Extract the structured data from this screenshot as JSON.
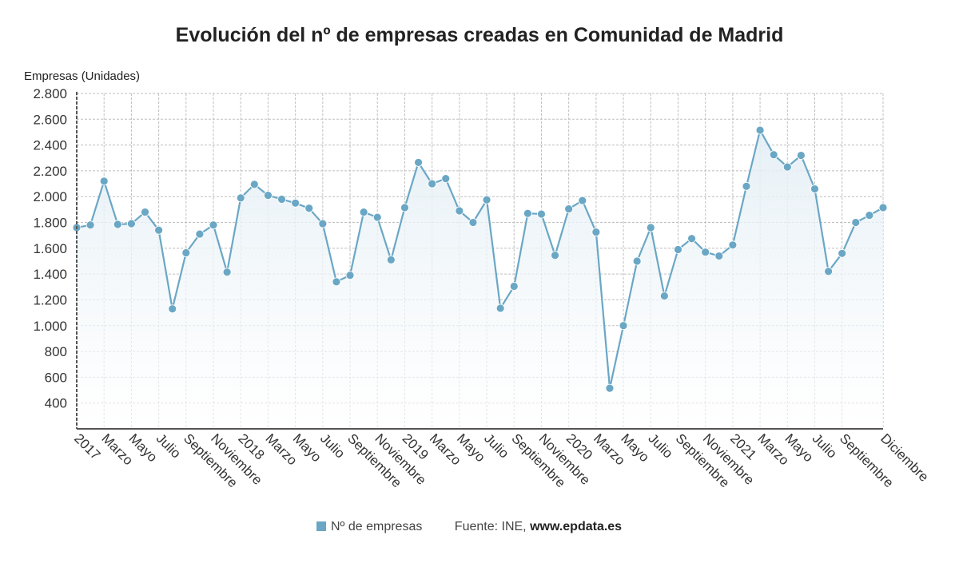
{
  "title": "Evolución del nº de empresas creadas en Comunidad de Madrid",
  "source": {
    "prefix": "Fuente: INE,",
    "brand": "www.epdata.es"
  },
  "colors": {
    "series": "#6aa7c5",
    "area_top": "#e3eef5",
    "grid": "#bfbfbf",
    "axis": "#555555"
  },
  "chart_data": {
    "type": "line",
    "ylabel": "Empresas (Unidades)",
    "ylim": [
      200,
      2800
    ],
    "yticks": [
      {
        "value": 400,
        "label": "400"
      },
      {
        "value": 600,
        "label": "600"
      },
      {
        "value": 800,
        "label": "800"
      },
      {
        "value": 1000,
        "label": "1.000"
      },
      {
        "value": 1200,
        "label": "1.200"
      },
      {
        "value": 1400,
        "label": "1.400"
      },
      {
        "value": 1600,
        "label": "1.600"
      },
      {
        "value": 1800,
        "label": "1.800"
      },
      {
        "value": 2000,
        "label": "2.000"
      },
      {
        "value": 2200,
        "label": "2.200"
      },
      {
        "value": 2400,
        "label": "2.400"
      },
      {
        "value": 2600,
        "label": "2.600"
      },
      {
        "value": 2800,
        "label": "2.800"
      }
    ],
    "x": [
      "2017-01",
      "2017-02",
      "2017-03",
      "2017-04",
      "2017-05",
      "2017-06",
      "2017-07",
      "2017-08",
      "2017-09",
      "2017-10",
      "2017-11",
      "2017-12",
      "2018-01",
      "2018-02",
      "2018-03",
      "2018-04",
      "2018-05",
      "2018-06",
      "2018-07",
      "2018-08",
      "2018-09",
      "2018-10",
      "2018-11",
      "2018-12",
      "2019-01",
      "2019-02",
      "2019-03",
      "2019-04",
      "2019-05",
      "2019-06",
      "2019-07",
      "2019-08",
      "2019-09",
      "2019-10",
      "2019-11",
      "2019-12",
      "2020-01",
      "2020-02",
      "2020-03",
      "2020-04",
      "2020-05",
      "2020-06",
      "2020-07",
      "2020-08",
      "2020-09",
      "2020-10",
      "2020-11",
      "2020-12",
      "2021-01",
      "2021-02",
      "2021-03",
      "2021-04",
      "2021-05",
      "2021-06",
      "2021-07",
      "2021-08",
      "2021-09",
      "2021-10",
      "2021-11",
      "2021-12"
    ],
    "xtick_labels": [
      {
        "index": 0,
        "label": "2017"
      },
      {
        "index": 2,
        "label": "Marzo"
      },
      {
        "index": 4,
        "label": "Mayo"
      },
      {
        "index": 6,
        "label": "Julio"
      },
      {
        "index": 8,
        "label": "Septiembre"
      },
      {
        "index": 10,
        "label": "Noviembre"
      },
      {
        "index": 12,
        "label": "2018"
      },
      {
        "index": 14,
        "label": "Marzo"
      },
      {
        "index": 16,
        "label": "Mayo"
      },
      {
        "index": 18,
        "label": "Julio"
      },
      {
        "index": 20,
        "label": "Septiembre"
      },
      {
        "index": 22,
        "label": "Noviembre"
      },
      {
        "index": 24,
        "label": "2019"
      },
      {
        "index": 26,
        "label": "Marzo"
      },
      {
        "index": 28,
        "label": "Mayo"
      },
      {
        "index": 30,
        "label": "Julio"
      },
      {
        "index": 32,
        "label": "Septiembre"
      },
      {
        "index": 34,
        "label": "Noviembre"
      },
      {
        "index": 36,
        "label": "2020"
      },
      {
        "index": 38,
        "label": "Marzo"
      },
      {
        "index": 40,
        "label": "Mayo"
      },
      {
        "index": 42,
        "label": "Julio"
      },
      {
        "index": 44,
        "label": "Septiembre"
      },
      {
        "index": 46,
        "label": "Noviembre"
      },
      {
        "index": 48,
        "label": "2021"
      },
      {
        "index": 50,
        "label": "Marzo"
      },
      {
        "index": 52,
        "label": "Mayo"
      },
      {
        "index": 54,
        "label": "Julio"
      },
      {
        "index": 56,
        "label": "Septiembre"
      },
      {
        "index": 59,
        "label": "Diciembre"
      }
    ],
    "series": [
      {
        "name": "Nº de empresas",
        "values": [
          1760,
          1780,
          2120,
          1785,
          1790,
          1880,
          1740,
          1130,
          1565,
          1710,
          1780,
          1415,
          1990,
          2095,
          2010,
          1980,
          1950,
          1910,
          1790,
          1340,
          1390,
          1880,
          1840,
          1510,
          1915,
          2265,
          2100,
          2140,
          1890,
          1800,
          1975,
          1135,
          1305,
          1870,
          1865,
          1545,
          1905,
          1970,
          1725,
          515,
          1000,
          1500,
          1760,
          1230,
          1590,
          1675,
          1570,
          1540,
          1625,
          2080,
          2515,
          2325,
          2230,
          2320,
          2060,
          1420,
          1560,
          1800,
          1855,
          1915
        ]
      }
    ],
    "grid": true,
    "legend": "bottom"
  }
}
